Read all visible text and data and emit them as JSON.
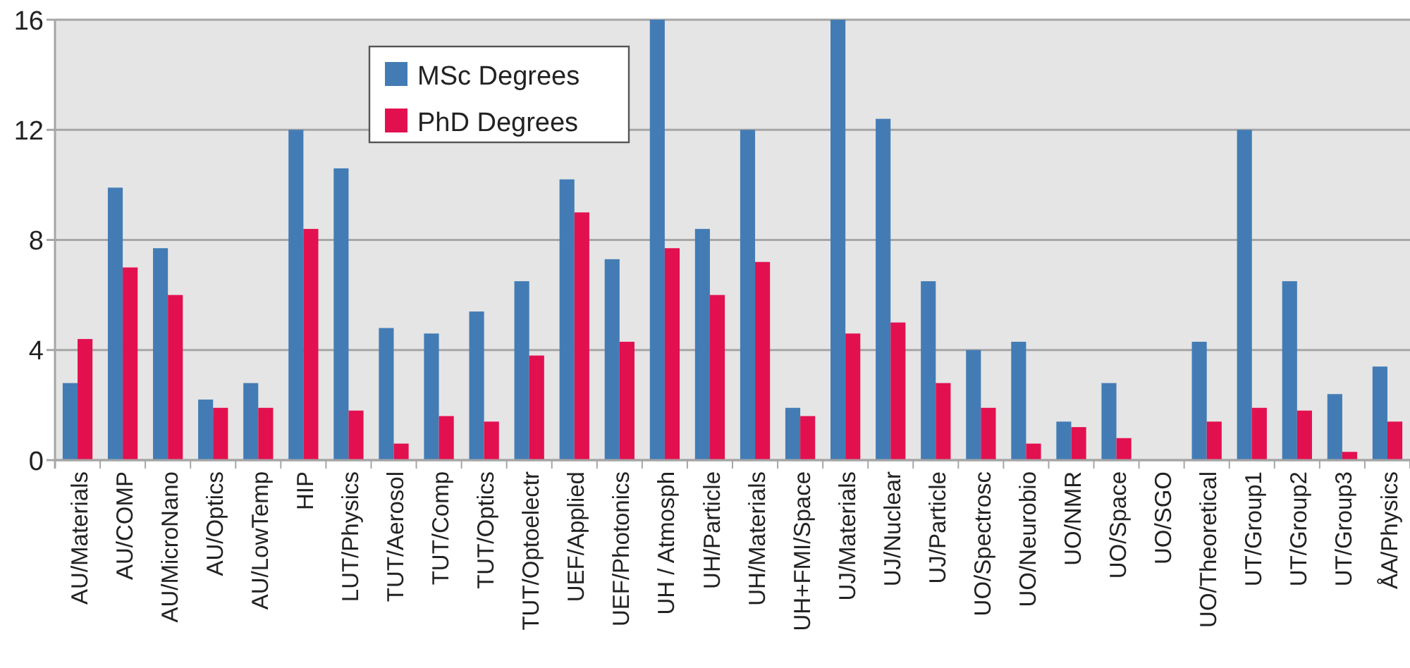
{
  "chart_data": {
    "type": "bar",
    "categories": [
      "AU/Materials",
      "AU/COMP",
      "AU/MicroNano",
      "AU/Optics",
      "AU/LowTemp",
      "HIP",
      "LUT/Physics",
      "TUT/Aerosol",
      "TUT/Comp",
      "TUT/Optics",
      "TUT/Optoelectr",
      "UEF/Applied",
      "UEF/Photonics",
      "UH / Atmosph",
      "UH/Particle",
      "UH/Materials",
      "UH+FMI/Space",
      "UJ/Materials",
      "UJ/Nuclear",
      "UJ/Particle",
      "UO/Spectrosc",
      "UO/Neurobio",
      "UO/NMR",
      "UO/Space",
      "UO/SGO",
      "UO/Theoretical",
      "UT/Group1",
      "UT/Group2",
      "UT/Group3",
      "ÅA/Physics"
    ],
    "series": [
      {
        "name": "MSc Degrees",
        "color": "#437cb5",
        "values": [
          2.8,
          9.9,
          7.7,
          2.2,
          2.8,
          12.0,
          10.6,
          4.8,
          4.6,
          5.4,
          6.5,
          10.2,
          7.3,
          16,
          8.4,
          12.0,
          1.9,
          16,
          12.4,
          6.5,
          4.0,
          4.3,
          1.4,
          2.8,
          0,
          4.3,
          12.0,
          6.5,
          2.4,
          3.4
        ]
      },
      {
        "name": "PhD Degrees",
        "color": "#e3104f",
        "values": [
          4.4,
          7.0,
          6.0,
          1.9,
          1.9,
          8.4,
          1.8,
          0.6,
          1.6,
          1.4,
          3.8,
          9.0,
          4.3,
          7.7,
          6.0,
          7.2,
          1.6,
          4.6,
          5.0,
          2.8,
          1.9,
          0.6,
          1.2,
          0.8,
          0,
          1.4,
          1.9,
          1.8,
          0.3,
          1.4
        ]
      }
    ],
    "ylim": [
      0,
      16
    ],
    "yticks": [
      0,
      4,
      8,
      12,
      16
    ],
    "grid": "y",
    "legend": "top left"
  }
}
